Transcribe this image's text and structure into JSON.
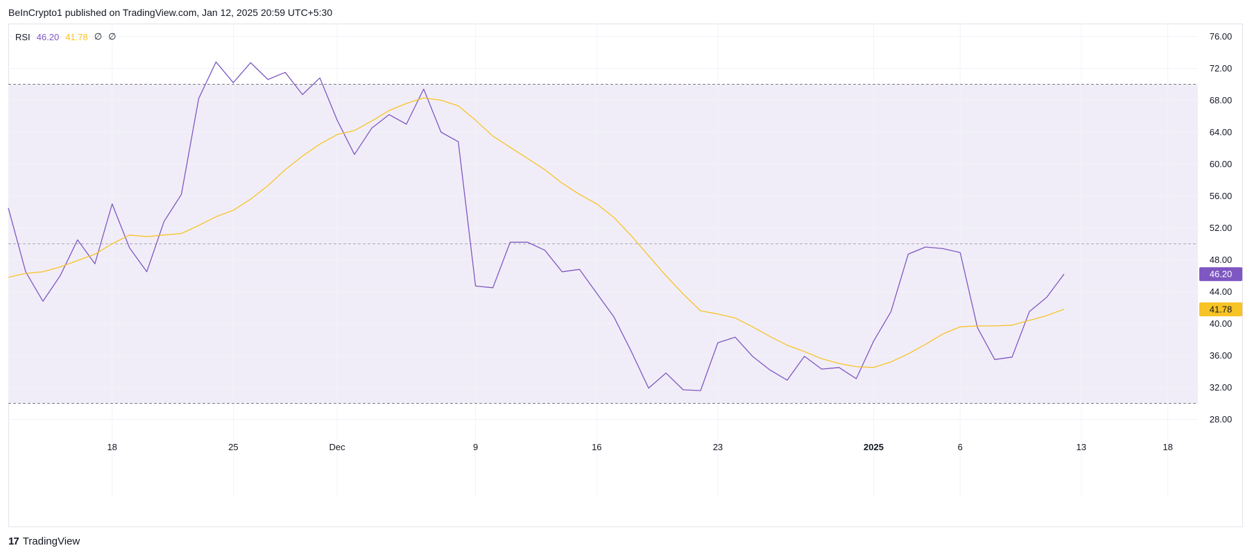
{
  "header": {
    "publisher": "BeInCrypto1 published on TradingView.com, Jan 12, 2025 20:59 UTC+5:30"
  },
  "legend": {
    "name": "RSI",
    "rsi_value": "46.20",
    "ma_value": "41.78",
    "null1": "∅",
    "null2": "∅"
  },
  "footer": {
    "brand": "TradingView",
    "logo": "17"
  },
  "colors": {
    "rsi": "#7e57c2",
    "ma": "#f7c325",
    "band_fill": "#f1edf8",
    "grid": "#f0f3fa",
    "dashed": "#787b86"
  },
  "chart_data": {
    "type": "line",
    "ylim": [
      26,
      78
    ],
    "y_ticks": [
      "28.00",
      "32.00",
      "36.00",
      "40.00",
      "44.00",
      "48.00",
      "52.00",
      "56.00",
      "60.00",
      "64.00",
      "68.00",
      "72.00",
      "76.00"
    ],
    "x_ticks": [
      {
        "label": "18",
        "index": 6,
        "bold": false
      },
      {
        "label": "25",
        "index": 13,
        "bold": false
      },
      {
        "label": "Dec",
        "index": 19,
        "bold": false
      },
      {
        "label": "9",
        "index": 27,
        "bold": false
      },
      {
        "label": "16",
        "index": 34,
        "bold": false
      },
      {
        "label": "23",
        "index": 41,
        "bold": false
      },
      {
        "label": "2025",
        "index": 50,
        "bold": true
      },
      {
        "label": "6",
        "index": 55,
        "bold": false
      },
      {
        "label": "13",
        "index": 62,
        "bold": false
      },
      {
        "label": "18",
        "index": 67,
        "bold": false
      }
    ],
    "bands": {
      "upper": 70,
      "middle": 50,
      "lower": 30
    },
    "series": [
      {
        "name": "RSI",
        "color": "#7e57c2",
        "values": [
          54.5,
          46.5,
          42.8,
          46.0,
          50.5,
          47.5,
          55.0,
          49.5,
          46.5,
          52.8,
          56.2,
          68.2,
          72.8,
          70.2,
          72.7,
          70.6,
          71.5,
          68.7,
          70.8,
          65.5,
          61.2,
          64.5,
          66.2,
          65.0,
          69.4,
          64.0,
          62.8,
          44.7,
          44.5,
          50.2,
          50.2,
          49.2,
          46.5,
          46.8,
          43.8,
          40.8,
          36.5,
          31.9,
          33.8,
          31.7,
          31.6,
          37.6,
          38.3,
          35.9,
          34.2,
          32.9,
          35.9,
          34.3,
          34.5,
          33.1,
          37.8,
          41.5,
          48.7,
          49.6,
          49.4,
          48.9,
          39.5,
          35.5,
          35.8,
          41.5,
          43.3,
          46.2
        ]
      },
      {
        "name": "MA",
        "color": "#f7c325",
        "values": [
          45.8,
          46.3,
          46.5,
          47.1,
          47.9,
          48.7,
          50.0,
          51.1,
          50.9,
          51.1,
          51.3,
          52.3,
          53.4,
          54.2,
          55.6,
          57.3,
          59.3,
          61.0,
          62.5,
          63.7,
          64.2,
          65.4,
          66.7,
          67.6,
          68.3,
          68.0,
          67.3,
          65.5,
          63.5,
          62.1,
          60.7,
          59.3,
          57.6,
          56.2,
          55.0,
          53.3,
          51.0,
          48.5,
          46.0,
          43.7,
          41.6,
          41.2,
          40.7,
          39.6,
          38.4,
          37.3,
          36.5,
          35.6,
          35.0,
          34.6,
          34.5,
          35.2,
          36.2,
          37.4,
          38.7,
          39.6,
          39.7,
          39.7,
          39.8,
          40.4,
          41.0,
          41.8
        ]
      }
    ],
    "last_value_labels": [
      {
        "text": "46.20",
        "value": 46.2,
        "series": "RSI"
      },
      {
        "text": "41.78",
        "value": 41.78,
        "series": "MA"
      }
    ]
  }
}
